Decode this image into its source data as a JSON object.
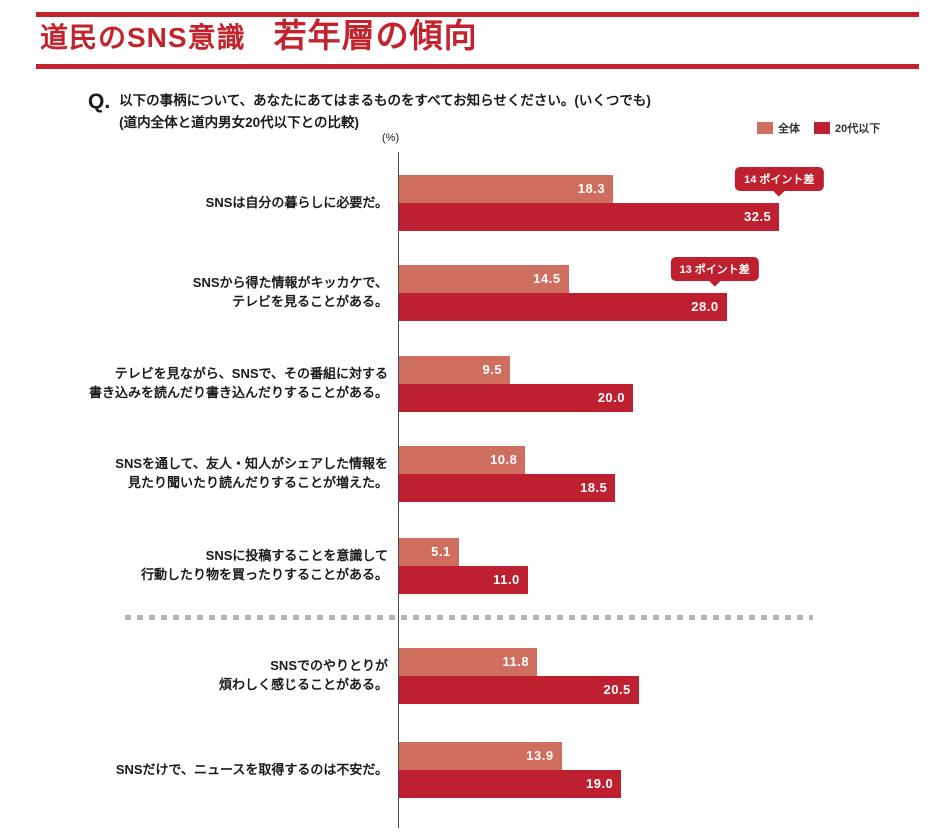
{
  "header": {
    "title_part1": "道民のSNS意識",
    "title_part2": "若年層の傾向"
  },
  "question": {
    "q_label": "Q.",
    "line1": "以下の事柄について、あなたにあてはまるものをすべてお知らせください。(いくつでも)",
    "line2": "(道内全体と道内男女20代以下との比較)"
  },
  "chart_data": {
    "type": "bar",
    "orientation": "horizontal",
    "unit_label": "(%)",
    "x_range": [
      0,
      35
    ],
    "grid": false,
    "legend_position": "top-right",
    "legend": [
      {
        "label": "全体",
        "color": "#cf6e5f"
      },
      {
        "label": "20代以下",
        "color": "#be202f"
      }
    ],
    "categories": [
      "SNSは自分の暮らしに必要だ。",
      "SNSから得た情報がキッカケで、テレビを見ることがある。",
      "テレビを見ながら、SNSで、その番組に対する書き込みを読んだり書き込んだりすることがある。",
      "SNSを通して、友人・知人がシェアした情報を見たり聞いたり読んだりすることが増えた。",
      "SNSに投稿することを意識して行動したり物を買ったりすることがある。",
      "SNSでのやりとりが煩わしく感じることがある。",
      "SNSだけで、ニュースを取得するのは不安だ。"
    ],
    "series": [
      {
        "name": "全体",
        "values": [
          18.3,
          14.5,
          9.5,
          10.8,
          5.1,
          11.8,
          13.9
        ]
      },
      {
        "name": "20代以下",
        "values": [
          32.5,
          28.0,
          20.0,
          18.5,
          11.0,
          20.5,
          19.0
        ]
      }
    ],
    "divider_after_row": 4,
    "rows": [
      {
        "label_lines": [
          "SNSは自分の暮らしに必要だ。"
        ],
        "values": [
          "18.3",
          "32.5"
        ],
        "annotation": "14 ポイント差",
        "annotation_offset": 0
      },
      {
        "label_lines": [
          "SNSから得た情報がキッカケで、",
          "テレビを見ることがある。"
        ],
        "values": [
          "14.5",
          "28.0"
        ],
        "annotation": "13 ポイント差",
        "annotation_offset": -12
      },
      {
        "label_lines": [
          "テレビを見ながら、SNSで、その番組に対する",
          "書き込みを読んだり書き込んだりすることがある。"
        ],
        "values": [
          "9.5",
          "20.0"
        ]
      },
      {
        "label_lines": [
          "SNSを通して、友人・知人がシェアした情報を",
          "見たり聞いたり読んだりすることが増えた。"
        ],
        "values": [
          "10.8",
          "18.5"
        ]
      },
      {
        "label_lines": [
          "SNSに投稿することを意識して",
          "行動したり物を買ったりすることがある。"
        ],
        "values": [
          "5.1",
          "11.0"
        ]
      },
      {
        "label_lines": [
          "SNSでのやりとりが",
          "煩わしく感じることがある。"
        ],
        "values": [
          "11.8",
          "20.5"
        ]
      },
      {
        "label_lines": [
          "SNSだけで、ニュースを取得するのは不安だ。"
        ],
        "values": [
          "13.9",
          "19.0"
        ]
      }
    ]
  }
}
